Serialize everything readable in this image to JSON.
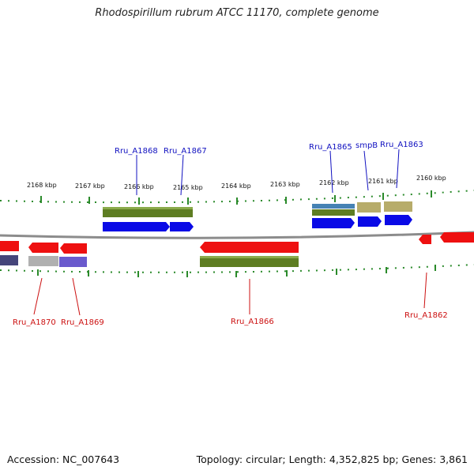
{
  "title": "Rhodospirillum rubrum ATCC 11170, complete genome",
  "footer": {
    "accession": "Accession: NC_007643",
    "summary": "Topology: circular; Length: 4,352,825 bp; Genes: 3,861"
  },
  "colors": {
    "plus_label": "#1010c0",
    "minus_label": "#cc1010",
    "backbone": "#8c8c8c",
    "tick": "#2a8a2a",
    "cds_plus": "#0a0ae6",
    "cds_minus": "#ee1010",
    "feature_olive": "#5e7d22",
    "feature_tan": "#b7ac6a",
    "feature_steel": "#4682b4",
    "feature_gray": "#b0b0b0",
    "feature_slate": "#6a5acd",
    "feature_navy": "#45457a"
  },
  "axis": {
    "ticks": [
      {
        "label": "2168 kbp"
      },
      {
        "label": "2167 kbp"
      },
      {
        "label": "2166 kbp"
      },
      {
        "label": "2165 kbp"
      },
      {
        "label": "2164 kbp"
      },
      {
        "label": "2163 kbp"
      },
      {
        "label": "2162 kbp"
      },
      {
        "label": "2161 kbp"
      },
      {
        "label": "2160 kbp"
      }
    ]
  },
  "genes": {
    "plus": [
      {
        "name": "Rru_A1868"
      },
      {
        "name": "Rru_A1867"
      },
      {
        "name": "Rru_A1865"
      },
      {
        "name": "smpB"
      },
      {
        "name": "Rru_A1863"
      }
    ],
    "minus": [
      {
        "name": "Rru_A1870"
      },
      {
        "name": "Rru_A1869"
      },
      {
        "name": "Rru_A1866"
      },
      {
        "name": "Rru_A1862"
      }
    ]
  }
}
